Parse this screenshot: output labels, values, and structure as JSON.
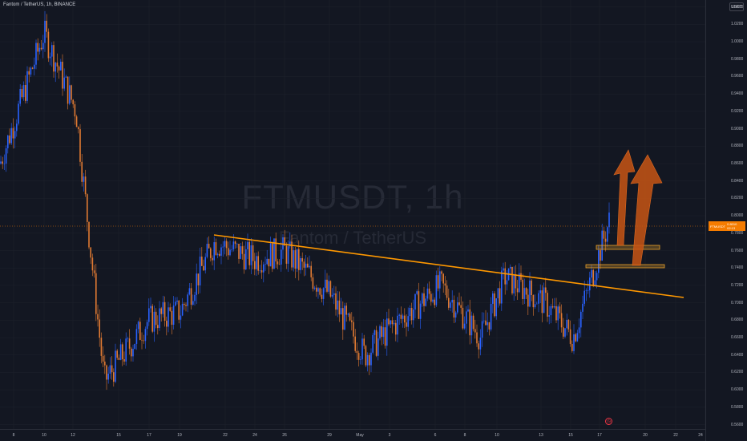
{
  "header": {
    "title": "Fantom / TetherUS, 1h, BINANCE",
    "currency": "USDT"
  },
  "watermark": {
    "symbol": "FTMUSDT, 1h",
    "description": "Fantom / TetherUS"
  },
  "price_axis": {
    "ticks": [
      "1.0400",
      "1.0200",
      "1.0000",
      "0.9800",
      "0.9600",
      "0.9400",
      "0.9200",
      "0.9000",
      "0.8800",
      "0.8600",
      "0.8400",
      "0.8200",
      "0.8000",
      "0.7800",
      "0.7600",
      "0.7400",
      "0.7200",
      "0.7000",
      "0.6800",
      "0.6600",
      "0.6400",
      "0.6200",
      "0.6000",
      "0.5800",
      "0.5600"
    ],
    "current_tag": {
      "symbol": "FTMUSDT",
      "price": "0.8010",
      "countdown": "02:13"
    }
  },
  "time_axis": {
    "ticks": [
      "8",
      "10",
      "12",
      "15",
      "17",
      "19",
      "22",
      "24",
      "26",
      "29",
      "May",
      "3",
      "6",
      "8",
      "10",
      "13",
      "15",
      "17",
      "20",
      "22",
      "24"
    ]
  },
  "colors": {
    "background": "#131722",
    "candle_up": "#2962ff",
    "candle_down": "#e07a32",
    "trendline": "#ff9800",
    "arrow": "#c4561a",
    "box_border": "#e69f2a"
  },
  "icons": {
    "alert": "alert-clock-icon"
  },
  "chart_data": {
    "type": "line",
    "symbol": "FTMUSDT",
    "interval": "1h",
    "exchange": "BINANCE",
    "x": [
      "8",
      "10",
      "12",
      "15",
      "17",
      "19",
      "22",
      "24",
      "26",
      "29",
      "May",
      "3",
      "6",
      "8",
      "10",
      "13",
      "15",
      "17"
    ],
    "series": [
      {
        "name": "FTMUSDT",
        "values": [
          0.86,
          1.01,
          0.92,
          0.61,
          0.68,
          0.69,
          0.77,
          0.75,
          0.76,
          0.71,
          0.64,
          0.67,
          0.72,
          0.66,
          0.73,
          0.7,
          0.66,
          0.8
        ]
      }
    ],
    "ylim": [
      0.555,
      1.048
    ],
    "xlabel": "",
    "ylabel": ""
  }
}
